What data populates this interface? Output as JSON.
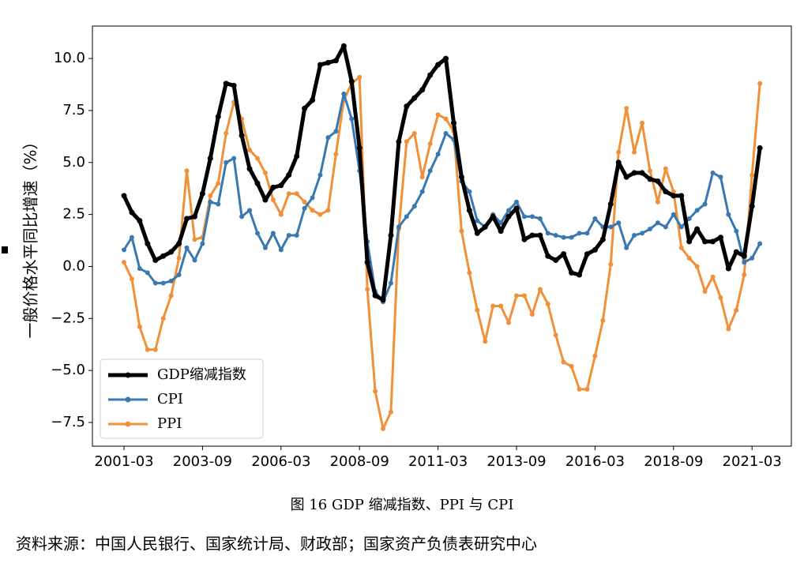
{
  "chart_data": {
    "type": "line",
    "ylabel": "一般价格水平同比增速（%）",
    "caption": "图 16   GDP 缩减指数、PPI 与 CPI",
    "source": "资料来源：中国人民银行、国家统计局、财政部；国家资产负债表研究中心",
    "x": [
      "2001-03",
      "2001-06",
      "2001-09",
      "2001-12",
      "2002-03",
      "2002-06",
      "2002-09",
      "2002-12",
      "2003-03",
      "2003-06",
      "2003-09",
      "2003-12",
      "2004-03",
      "2004-06",
      "2004-09",
      "2004-12",
      "2005-03",
      "2005-06",
      "2005-09",
      "2005-12",
      "2006-03",
      "2006-06",
      "2006-09",
      "2006-12",
      "2007-03",
      "2007-06",
      "2007-09",
      "2007-12",
      "2008-03",
      "2008-06",
      "2008-09",
      "2008-12",
      "2009-03",
      "2009-06",
      "2009-09",
      "2009-12",
      "2010-03",
      "2010-06",
      "2010-09",
      "2010-12",
      "2011-03",
      "2011-06",
      "2011-09",
      "2011-12",
      "2012-03",
      "2012-06",
      "2012-09",
      "2012-12",
      "2013-03",
      "2013-06",
      "2013-09",
      "2013-12",
      "2014-03",
      "2014-06",
      "2014-09",
      "2014-12",
      "2015-03",
      "2015-06",
      "2015-09",
      "2015-12",
      "2016-03",
      "2016-06",
      "2016-09",
      "2016-12",
      "2017-03",
      "2017-06",
      "2017-09",
      "2017-12",
      "2018-03",
      "2018-06",
      "2018-09",
      "2018-12",
      "2019-03",
      "2019-06",
      "2019-09",
      "2019-12",
      "2020-03",
      "2020-06",
      "2020-09",
      "2020-12",
      "2021-03",
      "2021-06"
    ],
    "xticks": [
      "2001-03",
      "2003-09",
      "2006-03",
      "2008-09",
      "2011-03",
      "2013-09",
      "2016-03",
      "2018-09",
      "2021-03"
    ],
    "ylim": [
      -8.64,
      11.56
    ],
    "yticks": [
      {
        "value": 10,
        "label": "10.0"
      },
      {
        "value": 7.5,
        "label": "7.5"
      },
      {
        "value": 5,
        "label": "5.0"
      },
      {
        "value": 2.5,
        "label": "2.5"
      },
      {
        "value": 0,
        "label": "0.0"
      },
      {
        "value": -2.5,
        "label": "−2.5"
      },
      {
        "value": -5,
        "label": "−5.0"
      },
      {
        "value": -7.5,
        "label": "−7.5"
      }
    ],
    "legend": "lower left",
    "series": [
      {
        "name": "GDP缩减指数",
        "color": "#000000",
        "values": [
          3.4,
          2.6,
          2.2,
          1.1,
          0.3,
          0.5,
          0.7,
          1.1,
          2.3,
          2.4,
          3.5,
          5.2,
          7.2,
          8.8,
          8.7,
          6.3,
          4.7,
          4.0,
          3.2,
          3.8,
          3.9,
          4.4,
          5.3,
          7.6,
          8.0,
          9.7,
          9.8,
          9.9,
          10.6,
          8.9,
          5.7,
          0.2,
          -1.4,
          -1.6,
          1.5,
          6.0,
          7.7,
          8.1,
          8.5,
          9.2,
          9.7,
          10.0,
          6.9,
          4.3,
          2.7,
          1.6,
          1.9,
          2.4,
          1.7,
          2.4,
          2.8,
          1.3,
          1.5,
          1.5,
          0.5,
          0.3,
          0.6,
          -0.3,
          -0.4,
          0.6,
          0.8,
          1.3,
          3.0,
          5.0,
          4.3,
          4.5,
          4.5,
          4.2,
          4.1,
          3.6,
          3.4,
          3.4,
          1.2,
          1.8,
          1.2,
          1.2,
          1.4,
          -0.1,
          0.7,
          0.5,
          2.9,
          5.7
        ]
      },
      {
        "name": "CPI",
        "color": "#3a78b0",
        "values": [
          0.8,
          1.4,
          -0.1,
          -0.3,
          -0.8,
          -0.8,
          -0.7,
          -0.4,
          0.9,
          0.3,
          1.1,
          3.1,
          3.0,
          5.0,
          5.2,
          2.4,
          2.7,
          1.6,
          0.9,
          1.6,
          0.8,
          1.5,
          1.5,
          2.8,
          3.3,
          4.4,
          6.2,
          6.5,
          8.3,
          7.1,
          4.6,
          1.2,
          -1.2,
          -1.7,
          -0.8,
          1.9,
          2.4,
          2.9,
          3.6,
          4.6,
          5.4,
          6.4,
          6.1,
          4.1,
          3.6,
          2.2,
          1.9,
          2.5,
          2.1,
          2.7,
          3.1,
          2.4,
          2.4,
          2.3,
          1.6,
          1.5,
          1.4,
          1.4,
          1.6,
          1.6,
          2.3,
          1.9,
          1.9,
          2.1,
          0.9,
          1.5,
          1.6,
          1.8,
          2.1,
          1.9,
          2.5,
          1.9,
          2.3,
          2.7,
          3.0,
          4.5,
          4.3,
          2.5,
          1.7,
          0.2,
          0.4,
          1.1
        ]
      },
      {
        "name": "PPI",
        "color": "#f0913a",
        "values": [
          0.2,
          -0.6,
          -2.9,
          -4.0,
          -4.0,
          -2.5,
          -1.4,
          0.4,
          4.6,
          1.3,
          1.4,
          3.4,
          4.0,
          6.4,
          7.9,
          7.1,
          5.6,
          5.2,
          4.5,
          3.2,
          2.5,
          3.5,
          3.5,
          3.1,
          2.7,
          2.5,
          2.7,
          5.4,
          8.0,
          8.8,
          9.1,
          -1.1,
          -6.0,
          -7.8,
          -7.0,
          1.8,
          6.0,
          6.4,
          4.3,
          5.9,
          7.3,
          7.1,
          6.5,
          1.7,
          -0.3,
          -2.1,
          -3.6,
          -1.9,
          -1.9,
          -2.7,
          -1.4,
          -1.4,
          -2.3,
          -1.1,
          -1.8,
          -3.3,
          -4.6,
          -4.8,
          -5.9,
          -5.9,
          -4.3,
          -2.6,
          0.1,
          5.5,
          7.6,
          5.5,
          6.9,
          4.6,
          3.1,
          4.7,
          3.6,
          0.9,
          0.4,
          0.0,
          -1.2,
          -0.5,
          -1.5,
          -3.0,
          -2.1,
          -0.4,
          4.4,
          8.8
        ]
      }
    ]
  }
}
